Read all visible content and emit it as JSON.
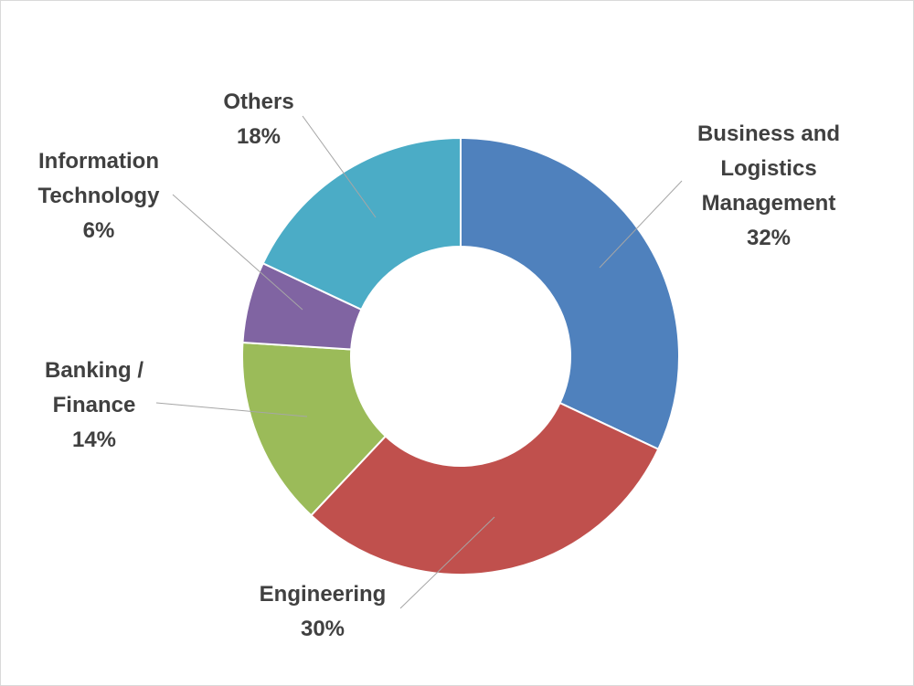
{
  "chart_data": {
    "type": "pie",
    "variant": "donut",
    "legend": "none",
    "series": [
      {
        "name": "Business and Logistics Management",
        "label_lines": [
          "Business and",
          "Logistics",
          "Management"
        ],
        "pct_label": "32%",
        "value": 32,
        "color": "#4F81BD"
      },
      {
        "name": "Engineering",
        "label_lines": [
          "Engineering"
        ],
        "pct_label": "30%",
        "value": 30,
        "color": "#C0504D"
      },
      {
        "name": "Banking / Finance",
        "label_lines": [
          "Banking /",
          "Finance"
        ],
        "pct_label": "14%",
        "value": 14,
        "color": "#9BBB59"
      },
      {
        "name": "Information Technology",
        "label_lines": [
          "Information",
          "Technology"
        ],
        "pct_label": "6%",
        "value": 6,
        "color": "#8064A2"
      },
      {
        "name": "Others",
        "label_lines": [
          "Others"
        ],
        "pct_label": "18%",
        "value": 18,
        "color": "#4BACC6"
      }
    ]
  }
}
